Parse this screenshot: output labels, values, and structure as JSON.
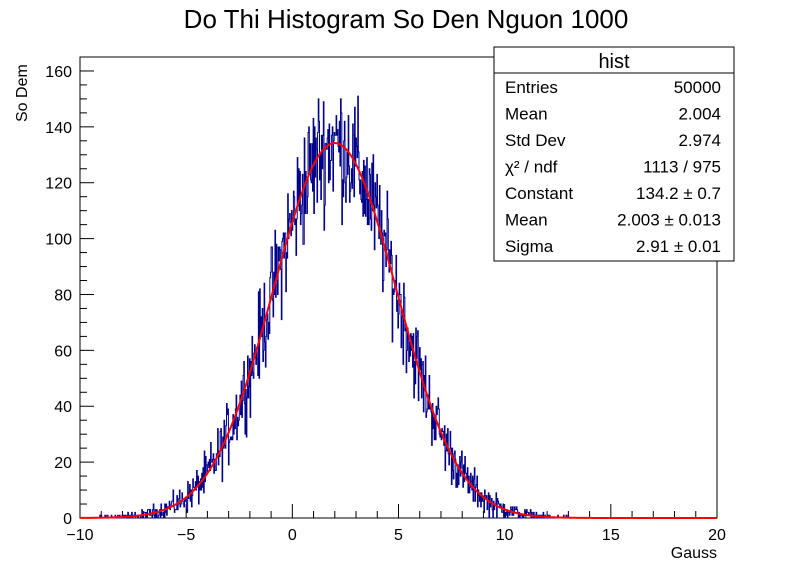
{
  "chart_data": {
    "type": "histogram",
    "title": "Do Thi Histogram So Den Nguon 1000",
    "xlabel": "Gauss",
    "ylabel": "So Dem",
    "xlim": [
      -10,
      20
    ],
    "ylim": [
      0,
      165
    ],
    "x_ticks": [
      -10,
      -5,
      0,
      5,
      10,
      15,
      20
    ],
    "x_tick_labels": [
      "−10",
      "−5",
      "0",
      "5",
      "10",
      "15",
      "20"
    ],
    "y_ticks": [
      0,
      20,
      40,
      60,
      80,
      100,
      120,
      140,
      160
    ],
    "y_tick_labels": [
      "0",
      "20",
      "40",
      "60",
      "80",
      "100",
      "120",
      "140",
      "160"
    ],
    "bins": 1000,
    "histogram_color": "#00008b",
    "fit": {
      "function": "gaus",
      "color": "#ff0000",
      "constant": 134.2,
      "mean": 2.003,
      "sigma": 2.91
    },
    "stats_box": {
      "name": "hist",
      "rows": [
        {
          "label": "Entries",
          "value": "50000"
        },
        {
          "label": "Mean",
          "value": "2.004"
        },
        {
          "label": "Std Dev",
          "value": "2.974"
        },
        {
          "label": "χ² / ndf",
          "value": "1113 / 975"
        },
        {
          "label": "Constant",
          "value": "134.2 ± 0.7"
        },
        {
          "label": "Mean",
          "value": "2.003 ± 0.013"
        },
        {
          "label": "Sigma",
          "value": "2.91 ± 0.01"
        }
      ]
    }
  }
}
